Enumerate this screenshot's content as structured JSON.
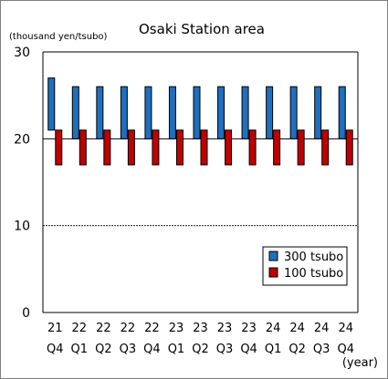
{
  "chart_data": {
    "type": "bar",
    "title": "Osaki Station area",
    "ylabel": "(thousand yen/tsubo)",
    "xlabel": "(year)",
    "ylim": [
      0,
      30
    ],
    "yticks": [
      0,
      10,
      20,
      30
    ],
    "gridlines": [
      10,
      20
    ],
    "categories": [
      {
        "year": "21",
        "quarter": "Q4"
      },
      {
        "year": "22",
        "quarter": "Q1"
      },
      {
        "year": "22",
        "quarter": "Q2"
      },
      {
        "year": "22",
        "quarter": "Q3"
      },
      {
        "year": "22",
        "quarter": "Q4"
      },
      {
        "year": "23",
        "quarter": "Q1"
      },
      {
        "year": "23",
        "quarter": "Q2"
      },
      {
        "year": "23",
        "quarter": "Q3"
      },
      {
        "year": "23",
        "quarter": "Q4"
      },
      {
        "year": "24",
        "quarter": "Q1"
      },
      {
        "year": "24",
        "quarter": "Q2"
      },
      {
        "year": "24",
        "quarter": "Q3"
      },
      {
        "year": "24",
        "quarter": "Q4"
      }
    ],
    "series": [
      {
        "name": "300 tsubo",
        "color": "#1f6fbf",
        "low": [
          21,
          20,
          20,
          20,
          20,
          20,
          20,
          20,
          20,
          20,
          20,
          20,
          20
        ],
        "high": [
          27,
          26,
          26,
          26,
          26,
          26,
          26,
          26,
          26,
          26,
          26,
          26,
          26
        ]
      },
      {
        "name": "100 tsubo",
        "color": "#c00000",
        "low": [
          17,
          17,
          17,
          17,
          17,
          17,
          17,
          17,
          17,
          17,
          17,
          17,
          17
        ],
        "high": [
          21,
          21,
          21,
          21,
          21,
          21,
          21,
          21,
          21,
          21,
          21,
          21,
          21
        ]
      }
    ],
    "legend": "inside-bottom-right"
  }
}
